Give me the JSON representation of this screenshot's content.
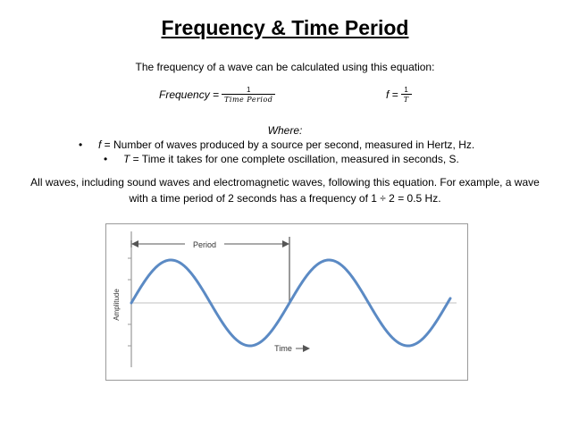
{
  "title": "Frequency & Time Period",
  "intro": "The frequency of a wave can be calculated using this equation:",
  "equation_left": {
    "lhs": "Frequency =",
    "numerator": "1",
    "denominator": "Time Period"
  },
  "equation_right": {
    "lhs": "f =",
    "numerator": "1",
    "denominator": "T"
  },
  "where": "Where:",
  "bullets": [
    {
      "marker": "•",
      "symbol": "f",
      "text": " = Number of waves produced by a source per second, measured in Hertz, Hz."
    },
    {
      "marker": "•",
      "symbol": "T",
      "text": " = Time it takes for one complete oscillation, measured in seconds, S."
    }
  ],
  "paragraph": "All waves, including sound waves and electromagnetic waves, following this equation. For example, a wave with a time period of 2 seconds has a frequency of 1 ÷ 2 = 0.5 Hz.",
  "diagram": {
    "period_label": "Period",
    "amplitude_label": "Amplitude",
    "time_label": "Time",
    "wave_color": "#5b8ac4",
    "axis_color": "#9a9a9a"
  }
}
